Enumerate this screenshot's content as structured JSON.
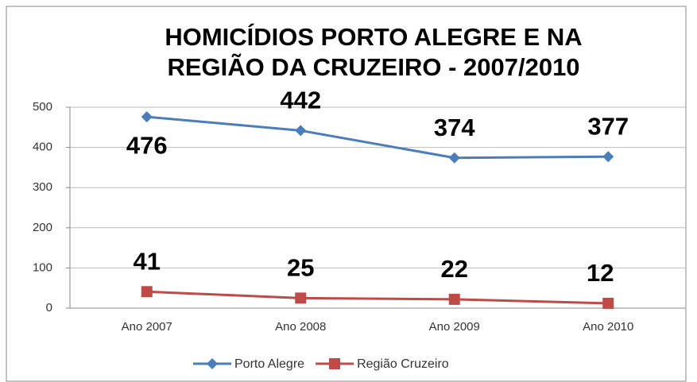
{
  "chart_data": {
    "type": "line",
    "title": [
      "HOMICÍDIOS PORTO ALEGRE E NA",
      "REGIÃO DA CRUZEIRO - 2007/2010"
    ],
    "categories": [
      "Ano 2007",
      "Ano 2008",
      "Ano 2009",
      "Ano 2010"
    ],
    "series": [
      {
        "name": "Porto Alegre",
        "color": "#4a7ebb",
        "marker": "diamond",
        "values": [
          476,
          442,
          374,
          377
        ]
      },
      {
        "name": "Região Cruzeiro",
        "color": "#be4b48",
        "marker": "square",
        "values": [
          41,
          25,
          22,
          12
        ]
      }
    ],
    "ylim": [
      0,
      500
    ],
    "yticks": [
      0,
      100,
      200,
      300,
      400,
      500
    ],
    "grid": true,
    "legend": "bottom"
  }
}
